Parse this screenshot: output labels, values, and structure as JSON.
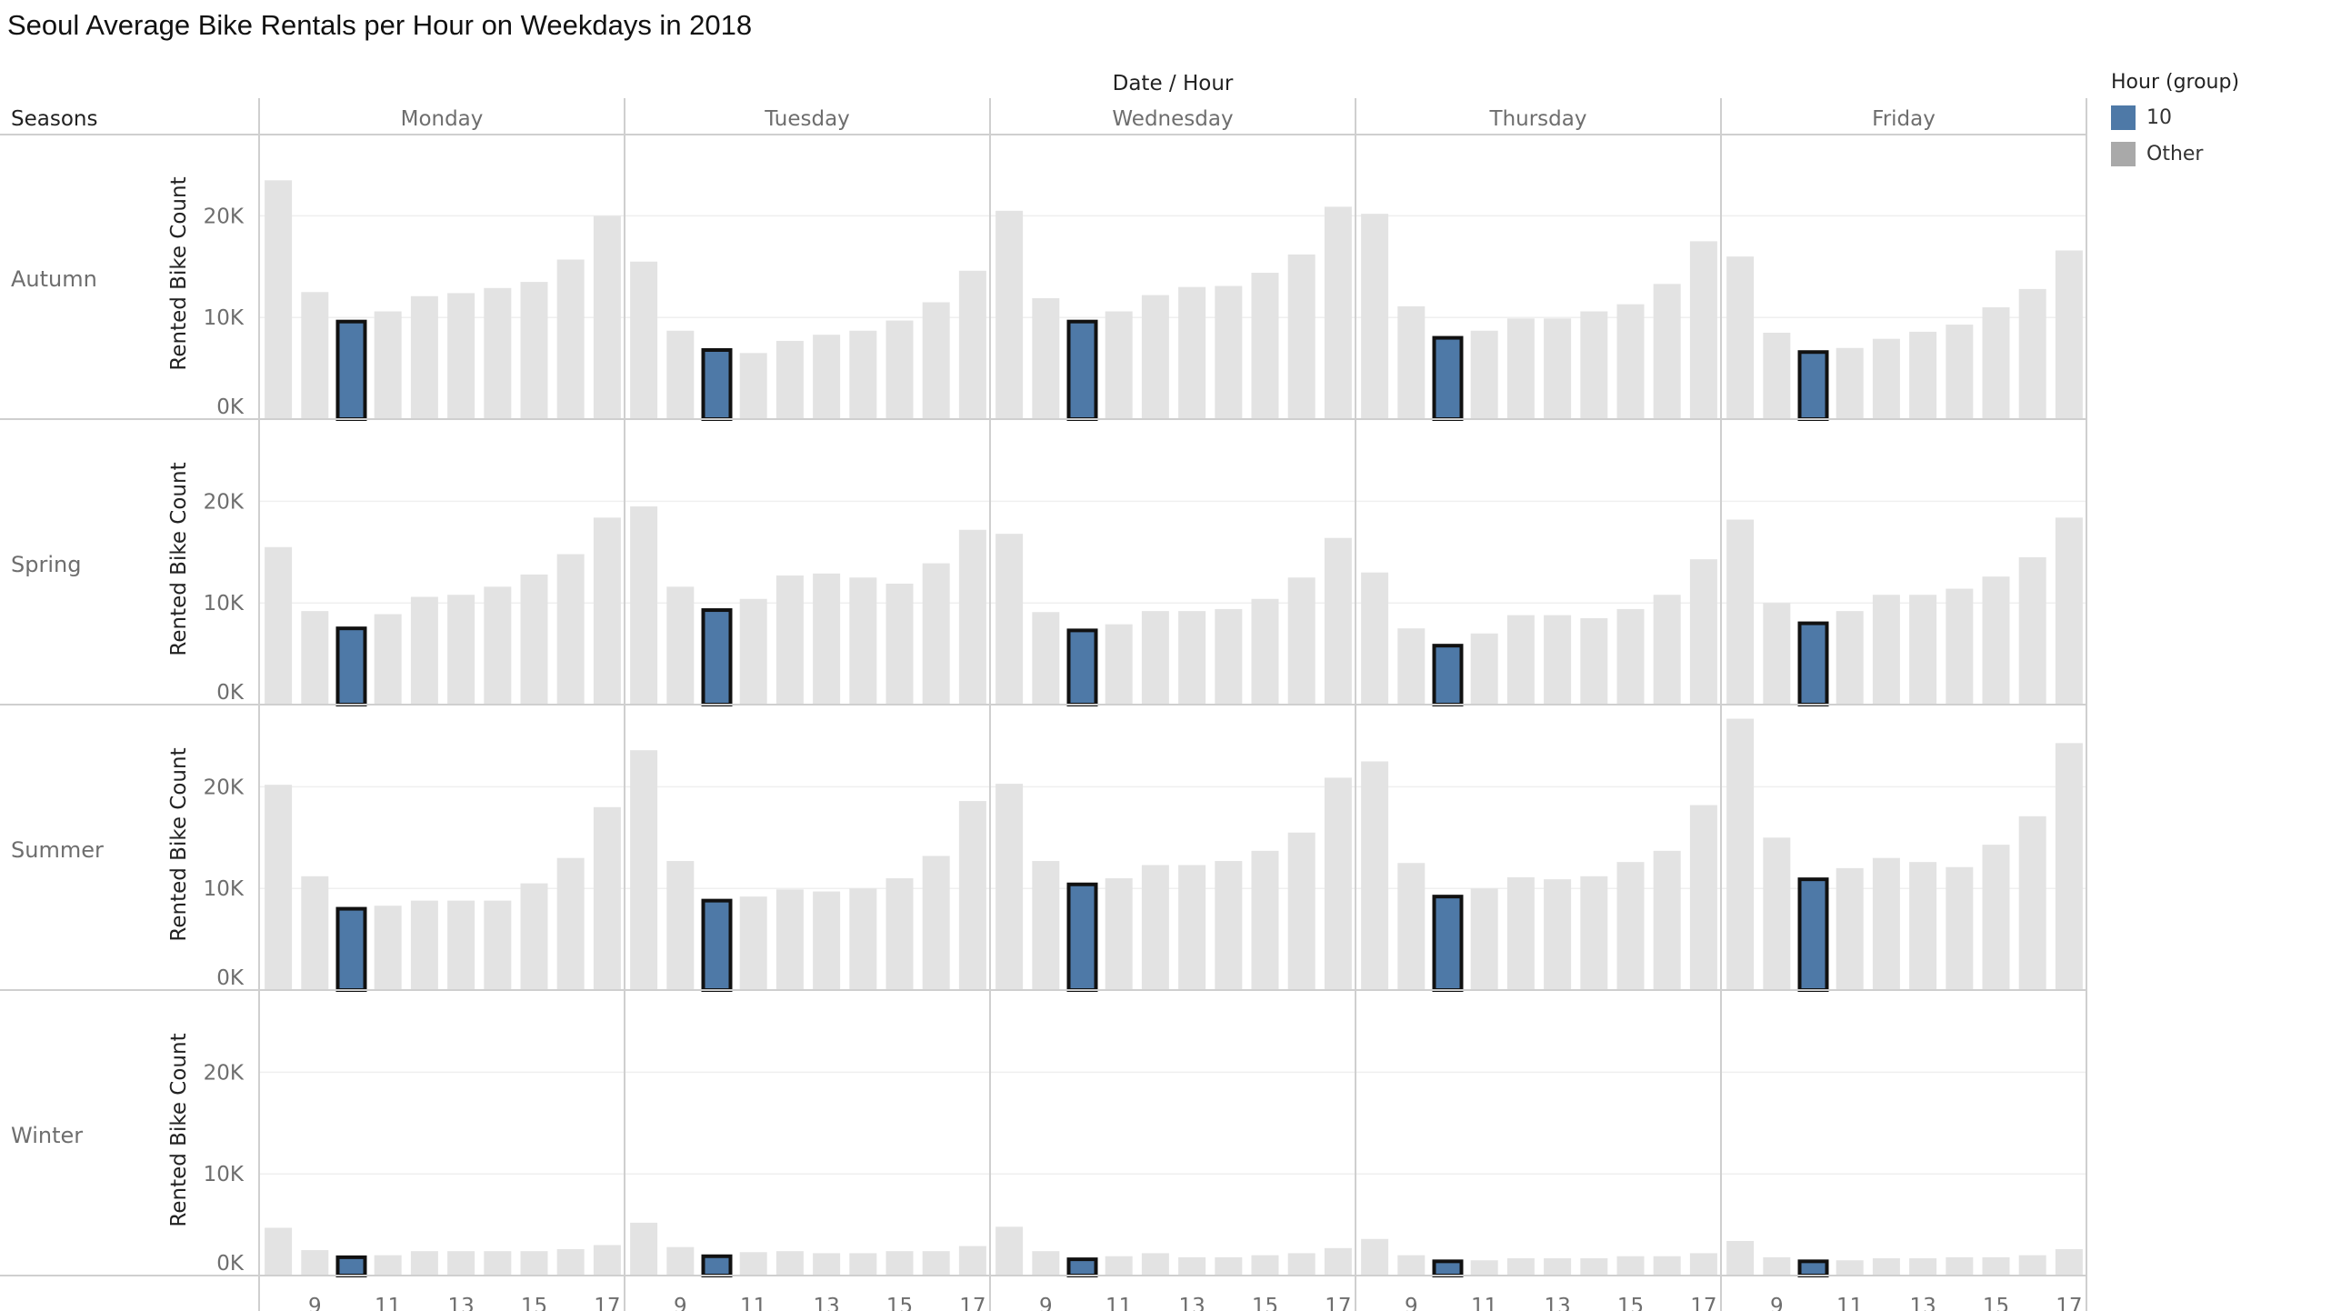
{
  "title": "Seoul Average Bike Rentals per Hour on Weekdays in 2018",
  "legend": {
    "title": "Hour (group)",
    "items": [
      {
        "label": "10",
        "color": "#4e79a7"
      },
      {
        "label": "Other",
        "color": "#a9a9a9"
      }
    ]
  },
  "colors": {
    "highlight": "#4e79a7",
    "other": "#e3e3e3",
    "highlight_border": "#111111",
    "grid": "#efefef",
    "divider": "#cfcfcf"
  },
  "chart_data": {
    "type": "bar",
    "column_header": "Date / Hour",
    "row_header": "Seasons",
    "ylabel": "Rented Bike Count",
    "ylim": [
      0,
      28000
    ],
    "yticks": [
      0,
      10000,
      20000
    ],
    "ytick_labels": [
      "0K",
      "10K",
      "20K"
    ],
    "hours": [
      8,
      9,
      10,
      11,
      12,
      13,
      14,
      15,
      16,
      17
    ],
    "xtick_labels": [
      "9",
      "11",
      "13",
      "15",
      "17"
    ],
    "highlight_hour": 10,
    "days": [
      "Monday",
      "Tuesday",
      "Wednesday",
      "Thursday",
      "Friday"
    ],
    "seasons": [
      {
        "name": "Autumn",
        "values": {
          "Monday": [
            23500,
            12500,
            9600,
            10600,
            12100,
            12400,
            12900,
            13500,
            15700,
            20000
          ],
          "Tuesday": [
            15500,
            8700,
            6800,
            6500,
            7700,
            8300,
            8700,
            9700,
            11500,
            14600
          ],
          "Wednesday": [
            20500,
            11900,
            9600,
            10600,
            12200,
            13000,
            13100,
            14400,
            16200,
            20900
          ],
          "Thursday": [
            20200,
            11100,
            8000,
            8700,
            9900,
            9900,
            10600,
            11300,
            13300,
            17500
          ],
          "Friday": [
            16000,
            8500,
            6600,
            7000,
            7900,
            8600,
            9300,
            11000,
            12800,
            16600
          ]
        }
      },
      {
        "name": "Spring",
        "values": {
          "Monday": [
            15500,
            9200,
            7500,
            8900,
            10600,
            10800,
            11600,
            12800,
            14800,
            18400
          ],
          "Tuesday": [
            19500,
            11600,
            9300,
            10400,
            12700,
            12900,
            12500,
            11900,
            13900,
            17200
          ],
          "Wednesday": [
            16800,
            9100,
            7300,
            7900,
            9200,
            9200,
            9400,
            10400,
            12500,
            16400
          ],
          "Thursday": [
            13000,
            7500,
            5800,
            7000,
            8800,
            8800,
            8500,
            9400,
            10800,
            14300
          ],
          "Friday": [
            18200,
            10000,
            8000,
            9200,
            10800,
            10800,
            11400,
            12600,
            14500,
            18400
          ]
        }
      },
      {
        "name": "Summer",
        "values": {
          "Monday": [
            20200,
            11200,
            8000,
            8300,
            8800,
            8800,
            8800,
            10500,
            13000,
            18000
          ],
          "Tuesday": [
            23600,
            12700,
            8800,
            9200,
            9900,
            9700,
            10000,
            11000,
            13200,
            18600
          ],
          "Wednesday": [
            20300,
            12700,
            10400,
            11000,
            12300,
            12300,
            12700,
            13700,
            15500,
            20900
          ],
          "Thursday": [
            22500,
            12500,
            9200,
            10000,
            11100,
            10900,
            11200,
            12600,
            13700,
            18200
          ],
          "Friday": [
            26700,
            15000,
            10900,
            12000,
            13000,
            12600,
            12100,
            14300,
            17100,
            24300
          ]
        }
      },
      {
        "name": "Winter",
        "values": {
          "Monday": [
            4700,
            2500,
            1800,
            2000,
            2400,
            2400,
            2400,
            2400,
            2600,
            3000
          ],
          "Tuesday": [
            5200,
            2800,
            1900,
            2300,
            2400,
            2200,
            2200,
            2400,
            2400,
            2900
          ],
          "Wednesday": [
            4800,
            2400,
            1600,
            1900,
            2200,
            1800,
            1800,
            2000,
            2200,
            2700
          ],
          "Thursday": [
            3600,
            2000,
            1400,
            1500,
            1700,
            1700,
            1700,
            1900,
            1900,
            2200
          ],
          "Friday": [
            3400,
            1800,
            1400,
            1500,
            1700,
            1700,
            1800,
            1800,
            2000,
            2600
          ]
        }
      }
    ]
  }
}
